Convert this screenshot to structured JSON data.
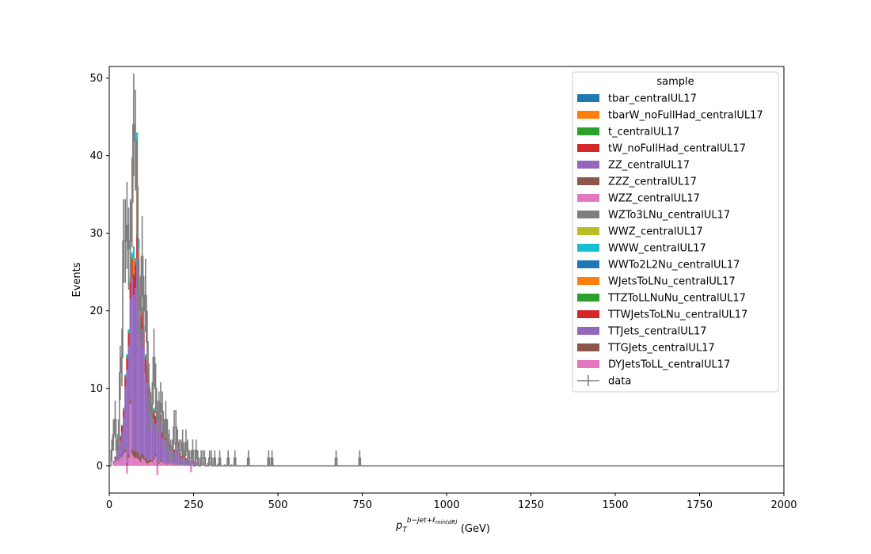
{
  "chart_data": {
    "type": "bar",
    "subtype": "stacked-histogram-with-data-points",
    "xlabel_main": "p",
    "xlabel_sub": "T",
    "xlabel_sup": "b−jet+ℓ",
    "xlabel_sup_sub": "min(dR)",
    "xlabel_unit": "(GeV)",
    "ylabel": "Events",
    "xlim": [
      0,
      2000
    ],
    "ylim": [
      -3.5,
      51.5
    ],
    "x_ticks": [
      0,
      250,
      500,
      750,
      1000,
      1250,
      1500,
      1750,
      2000
    ],
    "y_ticks": [
      0,
      10,
      20,
      30,
      40,
      50
    ],
    "x_tick_labels": [
      "0",
      "250",
      "500",
      "750",
      "1000",
      "1250",
      "1500",
      "1750",
      "2000"
    ],
    "y_tick_labels": [
      "0",
      "10",
      "20",
      "30",
      "40",
      "50"
    ],
    "bin_width": 5,
    "legend": {
      "title": "sample",
      "position": "top-right",
      "entries": [
        {
          "name": "tbar_centralUL17",
          "color": "#1f77b4"
        },
        {
          "name": "tbarW_noFullHad_centralUL17",
          "color": "#ff7f0e"
        },
        {
          "name": "t_centralUL17",
          "color": "#2ca02c"
        },
        {
          "name": "tW_noFullHad_centralUL17",
          "color": "#d62728"
        },
        {
          "name": "ZZ_centralUL17",
          "color": "#9467bd"
        },
        {
          "name": "ZZZ_centralUL17",
          "color": "#8c564b"
        },
        {
          "name": "WZZ_centralUL17",
          "color": "#e377c2"
        },
        {
          "name": "WZTo3LNu_centralUL17",
          "color": "#7f7f7f"
        },
        {
          "name": "WWZ_centralUL17",
          "color": "#bcbd22"
        },
        {
          "name": "WWW_centralUL17",
          "color": "#17becf"
        },
        {
          "name": "WWTo2L2Nu_centralUL17",
          "color": "#1f77b4"
        },
        {
          "name": "WJetsToLNu_centralUL17",
          "color": "#ff7f0e"
        },
        {
          "name": "TTZToLLNuNu_centralUL17",
          "color": "#2ca02c"
        },
        {
          "name": "TTWJetsToLNu_centralUL17",
          "color": "#d62728"
        },
        {
          "name": "TTJets_centralUL17",
          "color": "#9467bd"
        },
        {
          "name": "TTGJets_centralUL17",
          "color": "#8c564b"
        },
        {
          "name": "DYJetsToLL_centralUL17",
          "color": "#e377c2"
        },
        {
          "name": "data",
          "color": "#7f7f7f",
          "marker": "errorbar"
        }
      ]
    },
    "mc_stack": {
      "x": [
        10,
        15,
        20,
        25,
        30,
        35,
        40,
        45,
        50,
        55,
        60,
        65,
        70,
        75,
        80,
        85,
        90,
        95,
        100,
        105,
        110,
        115,
        120,
        125,
        130,
        135,
        140,
        145,
        150,
        155,
        160,
        165,
        170,
        175,
        180,
        185,
        190,
        195,
        200,
        205,
        210,
        215,
        220,
        225,
        230,
        235,
        240,
        245,
        250,
        255,
        260,
        270,
        280,
        290,
        300,
        310,
        320,
        340,
        360,
        380,
        400,
        420,
        450,
        480,
        500
      ],
      "dy": [
        0.3,
        0.5,
        0.8,
        0.6,
        0.9,
        1.2,
        1.5,
        1.8,
        -1.0,
        1.0,
        8.0,
        1.5,
        1.2,
        1.0,
        1.0,
        0.8,
        0.5,
        1.0,
        0.8,
        0.5,
        0.3,
        0.4,
        0.5,
        0.5,
        0.8,
        1.2,
        -1.2,
        0.3,
        0.5,
        0.5,
        0.3,
        0.2,
        0.2,
        0.3,
        0.2,
        0.2,
        0.2,
        0.1,
        0.1,
        0.1,
        0.1,
        0.1,
        0.1,
        0.1,
        0.1,
        0.0,
        -0.8,
        0.2,
        0.0,
        0.0,
        0.0,
        0.2,
        0.1,
        0.0,
        0.1,
        0.0,
        0.0,
        0.0,
        0.0,
        0.0,
        0.0,
        0.0,
        0.0,
        0.0,
        0.0
      ],
      "ttg": [
        0.0,
        0.0,
        0.1,
        0.1,
        0.1,
        0.2,
        0.3,
        0.4,
        0.4,
        0.5,
        0.6,
        0.7,
        0.8,
        0.9,
        0.8,
        0.8,
        0.7,
        0.6,
        0.6,
        0.5,
        0.4,
        0.4,
        0.3,
        0.3,
        0.3,
        0.2,
        0.2,
        0.2,
        0.2,
        0.2,
        0.1,
        0.1,
        0.1,
        0.1,
        0.1,
        0.1,
        0.1,
        0.1,
        0.1,
        0.1,
        0.0,
        0.0,
        0.0,
        0.0,
        0.0,
        0.0,
        0.0,
        0.0,
        0.0,
        0.0,
        0.0,
        0.0,
        0.0,
        0.0,
        0.0,
        0.0,
        0.0,
        0.0,
        0.0,
        0.0,
        0.0,
        0.0,
        0.0,
        0.0,
        0.0
      ],
      "ttjets": [
        0.2,
        0.5,
        1.0,
        1.5,
        2.2,
        3.0,
        4.5,
        8.0,
        12.0,
        14.0,
        13.0,
        22.0,
        20.0,
        21.0,
        25.0,
        19.0,
        15.0,
        16.0,
        14.0,
        11.0,
        10.0,
        8.0,
        7.0,
        5.0,
        5.0,
        4.0,
        6.0,
        7.0,
        5.0,
        3.0,
        3.0,
        3.0,
        2.5,
        2.0,
        2.0,
        1.8,
        1.5,
        2.5,
        1.5,
        1.2,
        1.0,
        1.0,
        0.8,
        0.7,
        0.6,
        0.6,
        0.6,
        0.5,
        0.5,
        0.4,
        0.4,
        0.3,
        0.3,
        0.3,
        0.3,
        0.2,
        0.2,
        0.2,
        0.2,
        0.1,
        0.1,
        0.1,
        0.1,
        0.1,
        0.0
      ],
      "ttw": [
        0.1,
        0.2,
        0.3,
        0.4,
        0.5,
        0.7,
        0.9,
        1.2,
        1.5,
        1.6,
        2.0,
        2.5,
        2.5,
        3.0,
        2.8,
        2.8,
        2.5,
        2.3,
        2.0,
        1.8,
        1.6,
        1.4,
        1.2,
        1.0,
        1.0,
        0.9,
        0.8,
        0.7,
        0.7,
        0.6,
        0.5,
        0.5,
        0.4,
        0.4,
        0.4,
        0.3,
        0.3,
        0.3,
        0.3,
        0.3,
        0.2,
        0.2,
        0.2,
        0.2,
        0.2,
        0.1,
        0.1,
        0.1,
        0.1,
        0.1,
        0.1,
        0.1,
        0.1,
        0.1,
        0.1,
        0.1,
        0.1,
        0.0,
        0.0,
        0.0,
        0.0,
        0.0,
        0.0,
        0.0,
        0.0
      ],
      "ttz": [
        0.0,
        0.0,
        0.0,
        0.1,
        0.1,
        0.1,
        0.1,
        0.2,
        0.2,
        0.2,
        0.3,
        0.3,
        0.3,
        0.4,
        0.4,
        0.4,
        0.3,
        0.3,
        0.3,
        0.3,
        0.2,
        0.2,
        0.2,
        0.2,
        0.2,
        0.1,
        0.1,
        0.1,
        0.1,
        0.1,
        0.1,
        0.1,
        0.1,
        0.1,
        0.0,
        0.0,
        0.0,
        0.0,
        0.0,
        0.0,
        0.0,
        0.0,
        0.0,
        0.0,
        0.0,
        0.0,
        0.0,
        0.0,
        0.0,
        0.0,
        0.0,
        0.0,
        0.0,
        0.0,
        0.0,
        0.0,
        0.0,
        0.0,
        0.0,
        0.0,
        0.0,
        0.0,
        0.0,
        0.0,
        0.0
      ],
      "wjets": [
        0.0,
        0.0,
        0.0,
        0.0,
        0.0,
        0.0,
        0.0,
        0.0,
        0.0,
        0.0,
        0.0,
        0.0,
        2.0,
        0.0,
        10.0,
        4.0,
        0.0,
        0.0,
        0.0,
        0.0,
        0.0,
        0.0,
        0.0,
        0.0,
        0.0,
        0.0,
        0.0,
        0.0,
        0.0,
        0.0,
        0.0,
        0.0,
        0.0,
        0.0,
        0.0,
        0.0,
        0.0,
        0.0,
        0.0,
        0.0,
        0.0,
        0.0,
        0.0,
        0.0,
        0.0,
        0.0,
        0.0,
        0.0,
        0.0,
        0.0,
        0.0,
        0.0,
        0.0,
        0.0,
        0.0,
        0.0,
        0.0,
        0.0,
        0.0,
        0.0,
        0.0,
        0.0,
        0.0,
        0.0,
        0.0
      ],
      "other": [
        0.0,
        0.0,
        0.0,
        0.1,
        0.1,
        0.1,
        0.2,
        0.2,
        0.3,
        0.3,
        0.4,
        0.5,
        1.5,
        0.5,
        3.0,
        1.5,
        0.3,
        0.3,
        0.3,
        0.3,
        0.2,
        0.2,
        0.2,
        0.2,
        0.2,
        0.1,
        0.1,
        0.1,
        0.1,
        0.1,
        0.1,
        0.1,
        0.1,
        0.1,
        0.0,
        0.0,
        0.0,
        0.0,
        0.0,
        0.0,
        0.0,
        0.0,
        0.0,
        0.0,
        0.0,
        0.0,
        0.0,
        0.0,
        0.0,
        0.0,
        0.0,
        0.0,
        0.0,
        0.0,
        0.0,
        0.0,
        0.0,
        0.0,
        0.0,
        0.0,
        0.0,
        0.0,
        0.0,
        0.0,
        0.0
      ]
    },
    "data_points": {
      "x": [
        2.5,
        7.5,
        12.5,
        17.5,
        22.5,
        27.5,
        32.5,
        37.5,
        42.5,
        47.5,
        52.5,
        57.5,
        62.5,
        67.5,
        72.5,
        77.5,
        82.5,
        87.5,
        92.5,
        97.5,
        102.5,
        107.5,
        112.5,
        117.5,
        122.5,
        127.5,
        132.5,
        137.5,
        142.5,
        147.5,
        152.5,
        157.5,
        162.5,
        167.5,
        172.5,
        177.5,
        182.5,
        187.5,
        192.5,
        197.5,
        202.5,
        207.5,
        212.5,
        217.5,
        222.5,
        227.5,
        232.5,
        237.5,
        242.5,
        247.5,
        252.5,
        257.5,
        262.5,
        267.5,
        272.5,
        277.5,
        282.5,
        287.5,
        292.5,
        297.5,
        302.5,
        307.5,
        312.5,
        317.5,
        322.5,
        327.5,
        332.5,
        352.5,
        357.5,
        372.5,
        412.5,
        472.5,
        482.5,
        672.5,
        742.5
      ],
      "y": [
        0,
        2,
        4,
        6,
        2,
        4,
        12,
        14,
        29,
        29,
        31,
        28,
        29,
        34,
        44,
        42,
        36,
        22,
        20,
        27,
        20,
        22,
        16,
        10,
        7,
        8,
        14,
        10,
        6,
        7,
        8,
        7,
        4,
        6,
        4,
        3,
        2,
        2,
        5,
        5,
        3,
        2,
        2,
        3,
        1,
        3,
        2,
        1,
        1,
        2,
        0,
        2,
        1,
        0,
        1,
        1,
        1,
        0,
        0,
        1,
        1,
        0,
        1,
        0,
        0,
        1,
        0,
        1,
        0,
        1,
        1,
        1,
        1,
        1,
        1
      ],
      "err": [
        0,
        1.4,
        2.0,
        2.4,
        1.4,
        2.0,
        3.5,
        3.7,
        5.4,
        5.4,
        5.6,
        5.3,
        5.4,
        5.8,
        6.6,
        6.5,
        6.0,
        4.7,
        4.5,
        5.2,
        4.5,
        4.7,
        4.0,
        3.2,
        2.6,
        2.8,
        3.7,
        3.2,
        2.4,
        2.6,
        2.8,
        2.6,
        2.0,
        2.4,
        2.0,
        1.7,
        1.4,
        1.4,
        2.2,
        2.2,
        1.7,
        1.4,
        1.4,
        1.7,
        1.0,
        1.7,
        1.4,
        1.0,
        1.0,
        1.4,
        0,
        1.4,
        1.0,
        0,
        1.0,
        1.0,
        1.0,
        0,
        0,
        1.0,
        1.0,
        0,
        1.0,
        0,
        0,
        1.0,
        0,
        1.0,
        0,
        1.0,
        1.0,
        1.0,
        1.0,
        1.0,
        1.0
      ]
    }
  }
}
